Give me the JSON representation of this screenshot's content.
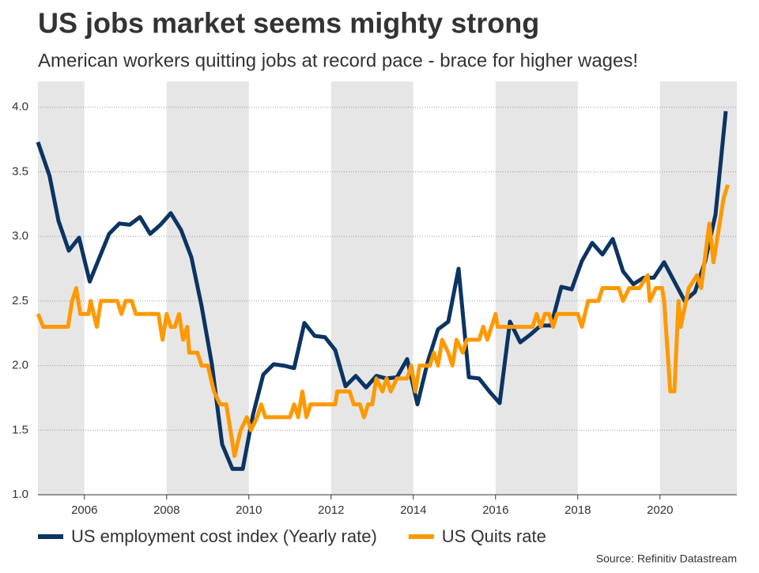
{
  "chart_data": {
    "type": "line",
    "title": "US jobs market seems mighty strong",
    "subtitle": "American workers quitting jobs at record pace - brace for higher wages!",
    "source": "Source: Refinitiv Datastream",
    "xlim": [
      2004.87,
      2021.87
    ],
    "xticks": [
      2006,
      2008,
      2010,
      2012,
      2014,
      2016,
      2018,
      2020
    ],
    "ylim": [
      1,
      4.2
    ],
    "yticks": [
      {
        "value": 1,
        "label": "1.0"
      },
      1.5,
      {
        "value": 2,
        "label": "2.0"
      },
      2.5,
      {
        "value": 3,
        "label": "3.0"
      },
      3.5,
      {
        "value": 4,
        "label": "4.0"
      }
    ],
    "grid": true,
    "shade_alternate_ticks": true,
    "legend": "bottom",
    "series": [
      {
        "name": "US employment cost index (Yearly rate)",
        "color": "#0c3463",
        "x": [
          2004.87,
          2005.15,
          2005.37,
          2005.62,
          2005.87,
          2006.13,
          2006.37,
          2006.6,
          2006.85,
          2007.1,
          2007.35,
          2007.6,
          2007.85,
          2008.1,
          2008.35,
          2008.6,
          2008.85,
          2009.1,
          2009.35,
          2009.6,
          2009.85,
          2010.1,
          2010.35,
          2010.6,
          2010.85,
          2011.1,
          2011.35,
          2011.6,
          2011.85,
          2012.1,
          2012.35,
          2012.6,
          2012.85,
          2013.1,
          2013.35,
          2013.6,
          2013.85,
          2014.1,
          2014.35,
          2014.6,
          2014.85,
          2015.1,
          2015.35,
          2015.6,
          2015.85,
          2016.1,
          2016.35,
          2016.6,
          2016.85,
          2017.1,
          2017.35,
          2017.6,
          2017.85,
          2018.1,
          2018.35,
          2018.6,
          2018.85,
          2019.1,
          2019.35,
          2019.6,
          2019.85,
          2020.1,
          2020.35,
          2020.6,
          2020.85,
          2021.1,
          2021.35,
          2021.6
        ],
        "values": [
          3.73,
          3.47,
          3.12,
          2.89,
          2.99,
          2.65,
          2.84,
          3.02,
          3.1,
          3.09,
          3.15,
          3.02,
          3.09,
          3.18,
          3.05,
          2.84,
          2.46,
          2.01,
          1.39,
          1.2,
          1.2,
          1.62,
          1.93,
          2.01,
          2.0,
          1.98,
          2.33,
          2.23,
          2.22,
          2.12,
          1.84,
          1.92,
          1.83,
          1.92,
          1.9,
          1.91,
          2.05,
          1.7,
          2.03,
          2.28,
          2.34,
          2.75,
          1.91,
          1.9,
          1.8,
          1.71,
          2.34,
          2.18,
          2.24,
          2.31,
          2.31,
          2.61,
          2.59,
          2.81,
          2.95,
          2.86,
          2.98,
          2.73,
          2.63,
          2.68,
          2.68,
          2.8,
          2.65,
          2.5,
          2.57,
          2.81,
          3.17,
          3.97
        ]
      },
      {
        "name": "US Quits rate",
        "color": "#ff9900",
        "x": [
          2004.87,
          2005.0,
          2005.6,
          2005.7,
          2005.8,
          2005.9,
          2006.1,
          2006.15,
          2006.3,
          2006.4,
          2006.8,
          2006.9,
          2007.0,
          2007.15,
          2007.25,
          2007.8,
          2007.9,
          2008.0,
          2008.1,
          2008.2,
          2008.3,
          2008.4,
          2008.5,
          2008.55,
          2008.75,
          2008.85,
          2009.0,
          2009.15,
          2009.3,
          2009.45,
          2009.55,
          2009.65,
          2009.8,
          2009.95,
          2010.05,
          2010.2,
          2010.3,
          2010.4,
          2011.0,
          2011.1,
          2011.2,
          2011.3,
          2011.4,
          2011.5,
          2012.1,
          2012.15,
          2012.45,
          2012.55,
          2012.7,
          2012.8,
          2012.9,
          2013.0,
          2013.1,
          2013.25,
          2013.35,
          2013.45,
          2013.6,
          2013.85,
          2013.95,
          2014.05,
          2014.15,
          2014.4,
          2014.5,
          2014.6,
          2014.7,
          2014.85,
          2014.95,
          2015.05,
          2015.2,
          2015.3,
          2015.6,
          2015.7,
          2015.8,
          2015.9,
          2016.0,
          2016.05,
          2016.9,
          2017.0,
          2017.1,
          2017.2,
          2017.3,
          2017.4,
          2017.5,
          2018.0,
          2018.1,
          2018.25,
          2018.5,
          2018.6,
          2019.0,
          2019.1,
          2019.25,
          2019.5,
          2019.7,
          2019.75,
          2019.9,
          2020.05,
          2020.1,
          2020.25,
          2020.35,
          2020.45,
          2020.5,
          2020.7,
          2020.9,
          2021.0,
          2021.2,
          2021.3,
          2021.45,
          2021.55,
          2021.65
        ],
        "values": [
          2.4,
          2.3,
          2.3,
          2.5,
          2.6,
          2.4,
          2.4,
          2.5,
          2.3,
          2.5,
          2.5,
          2.4,
          2.5,
          2.5,
          2.4,
          2.4,
          2.2,
          2.4,
          2.3,
          2.3,
          2.4,
          2.2,
          2.3,
          2.1,
          2.1,
          2.0,
          2.0,
          1.8,
          1.7,
          1.7,
          1.5,
          1.3,
          1.5,
          1.6,
          1.5,
          1.6,
          1.7,
          1.6,
          1.6,
          1.7,
          1.6,
          1.8,
          1.6,
          1.7,
          1.7,
          1.8,
          1.8,
          1.7,
          1.7,
          1.6,
          1.7,
          1.7,
          1.9,
          1.8,
          1.9,
          1.8,
          1.9,
          1.9,
          2.0,
          1.8,
          2.0,
          2.0,
          2.1,
          2.0,
          2.2,
          2.1,
          2.0,
          2.2,
          2.1,
          2.2,
          2.2,
          2.3,
          2.2,
          2.3,
          2.4,
          2.3,
          2.3,
          2.4,
          2.3,
          2.4,
          2.4,
          2.3,
          2.4,
          2.4,
          2.3,
          2.5,
          2.5,
          2.6,
          2.6,
          2.5,
          2.6,
          2.6,
          2.7,
          2.5,
          2.6,
          2.6,
          2.5,
          1.8,
          1.8,
          2.5,
          2.3,
          2.6,
          2.7,
          2.6,
          3.1,
          2.8,
          3.1,
          3.3,
          3.4
        ]
      }
    ]
  }
}
